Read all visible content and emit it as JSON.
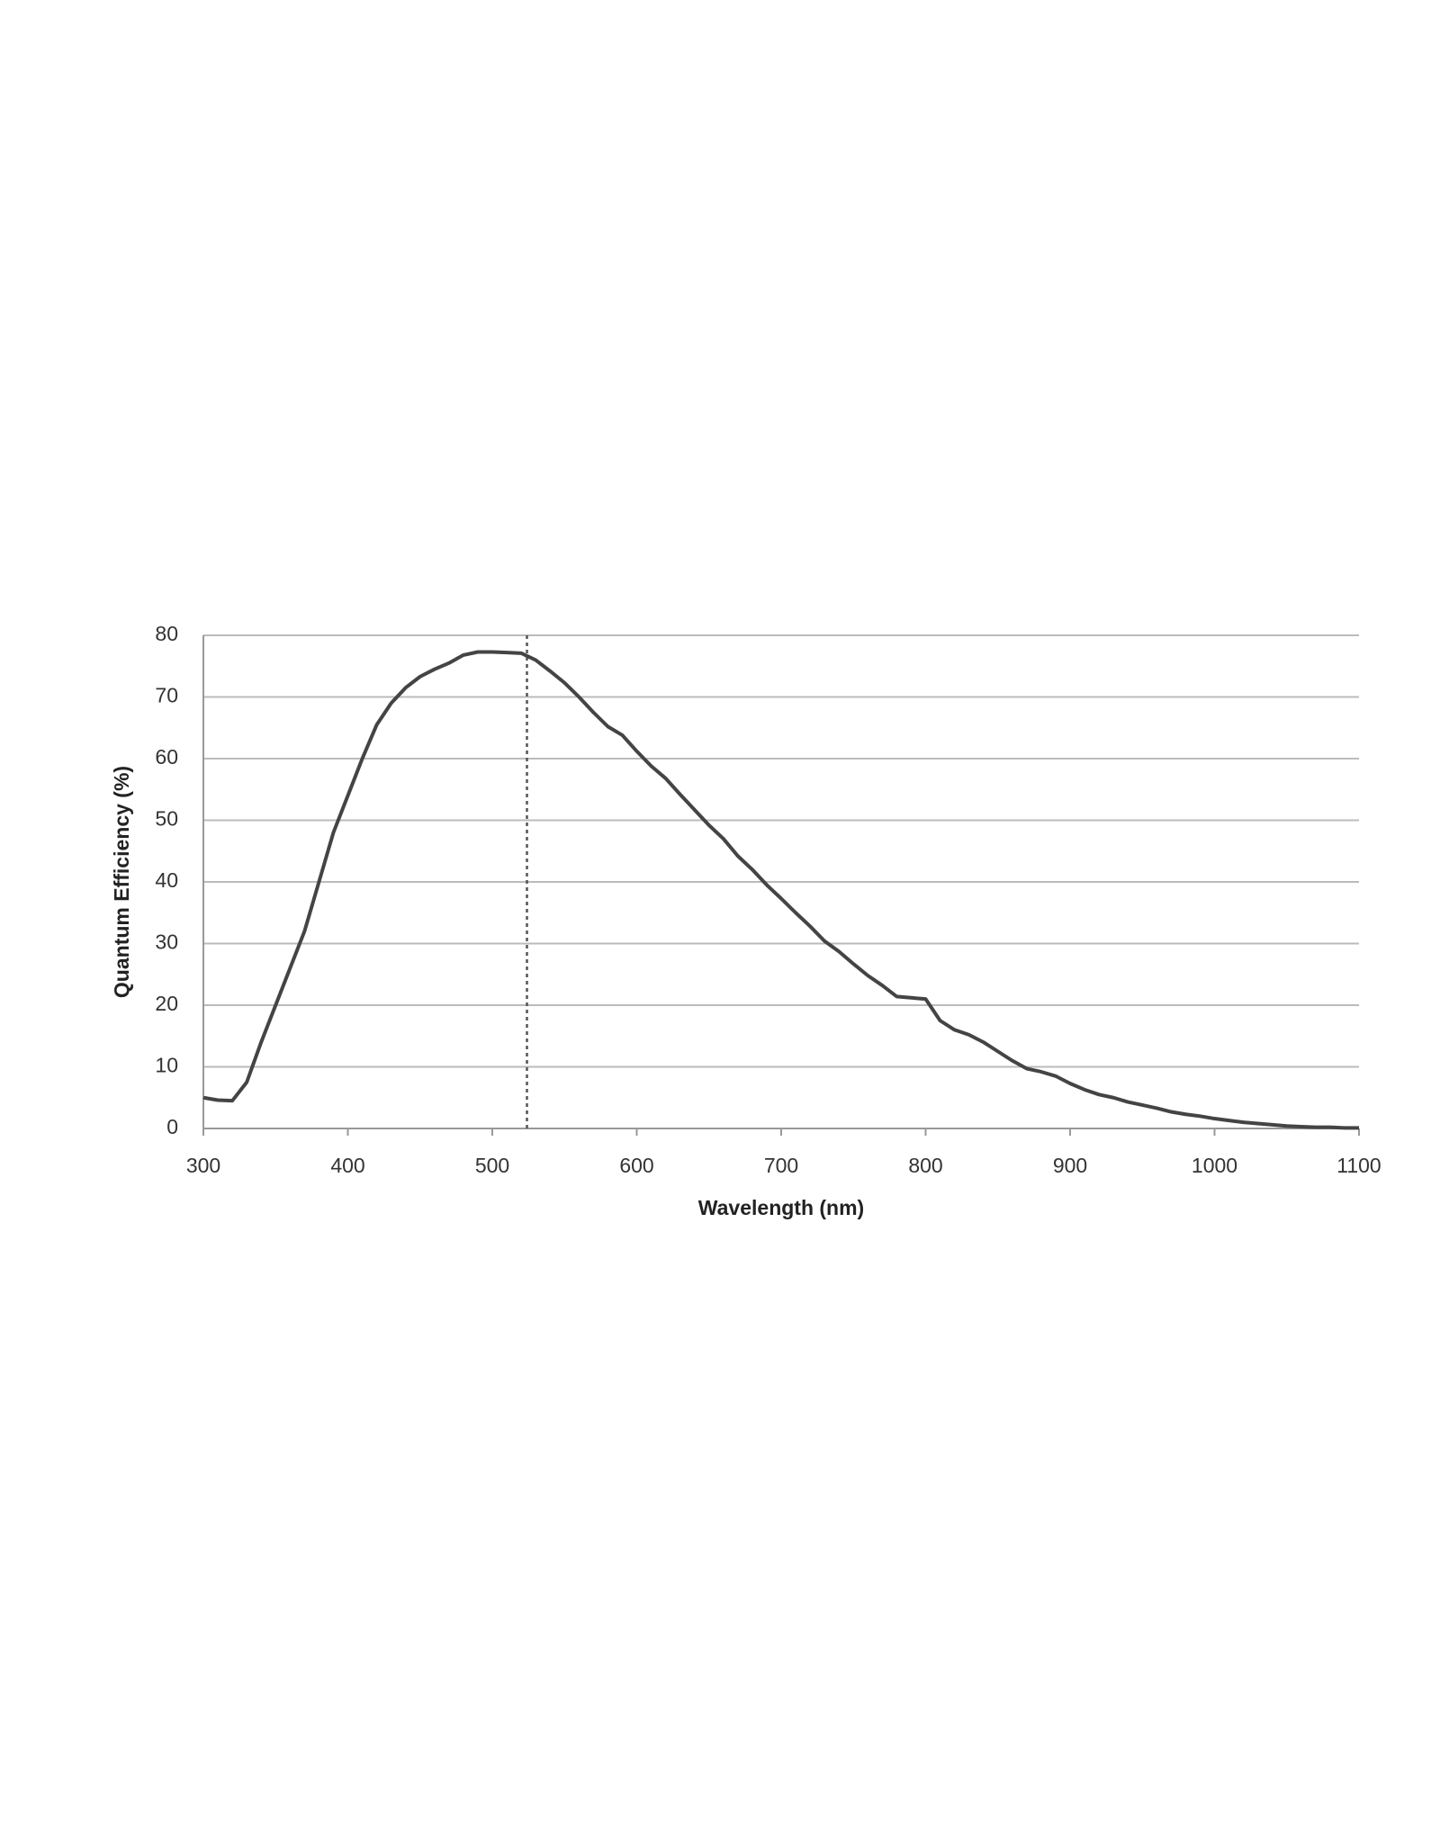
{
  "chart_data": {
    "type": "line",
    "x_label": "Wavelength (nm)",
    "y_label": "Quantum Efficiency (%)",
    "x": [
      300,
      310,
      320,
      330,
      340,
      350,
      360,
      370,
      380,
      390,
      400,
      410,
      420,
      430,
      440,
      450,
      460,
      470,
      480,
      490,
      500,
      510,
      520,
      530,
      540,
      550,
      560,
      570,
      580,
      590,
      600,
      610,
      620,
      630,
      640,
      650,
      660,
      670,
      680,
      690,
      700,
      710,
      720,
      730,
      740,
      750,
      760,
      770,
      780,
      790,
      800,
      810,
      820,
      830,
      840,
      850,
      860,
      870,
      880,
      890,
      900,
      910,
      920,
      930,
      940,
      950,
      960,
      970,
      980,
      990,
      1000,
      1010,
      1020,
      1030,
      1040,
      1050,
      1060,
      1070,
      1080,
      1090,
      1100
    ],
    "values": [
      5,
      4.6,
      4.5,
      7.5,
      14,
      20,
      26,
      32,
      40,
      48,
      54,
      60,
      65.5,
      69,
      71.5,
      73.3,
      74.5,
      75.5,
      76.8,
      77.3,
      77.3,
      77.2,
      77.1,
      76,
      74.2,
      72.3,
      70,
      67.5,
      65.2,
      63.8,
      61.2,
      58.8,
      56.8,
      54.2,
      51.7,
      49.2,
      47,
      44.2,
      42,
      39.5,
      37.3,
      35,
      32.8,
      30.4,
      28.7,
      26.7,
      24.8,
      23.2,
      21.4,
      21.2,
      21,
      17.5,
      16,
      15.2,
      14,
      12.5,
      11,
      9.7,
      9.2,
      8.5,
      7.3,
      6.3,
      5.5,
      5,
      4.3,
      3.8,
      3.3,
      2.7,
      2.3,
      2,
      1.6,
      1.3,
      1,
      0.8,
      0.6,
      0.4,
      0.3,
      0.2,
      0.2,
      0.1,
      0.1
    ],
    "color": "#444444",
    "reference_line_x": 524,
    "xlim": [
      300,
      1100
    ],
    "xticks": [
      300,
      400,
      500,
      600,
      700,
      800,
      900,
      1000,
      1100
    ],
    "ylim": [
      0,
      80
    ],
    "yticks": [
      0,
      10,
      20,
      30,
      40,
      50,
      60,
      70,
      80
    ],
    "grid": true
  }
}
